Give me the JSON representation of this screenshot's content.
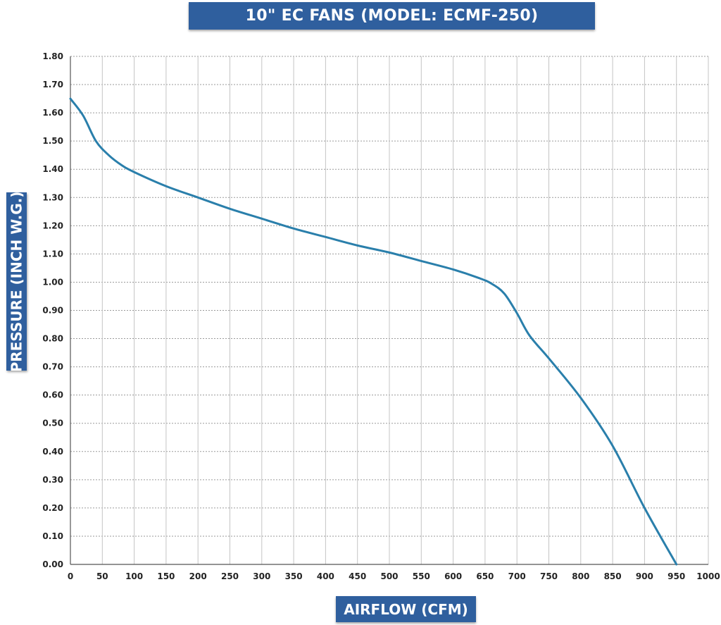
{
  "chart_data": {
    "type": "line",
    "title": "10\" EC FANS (MODEL: ECMF-250)",
    "xlabel": "AIRFLOW (CFM)",
    "ylabel": "PRESSURE (INCH W.G.)",
    "xlim": [
      0,
      1000
    ],
    "ylim": [
      0,
      1.8
    ],
    "x_ticks": [
      "0",
      "50",
      "100",
      "150",
      "200",
      "250",
      "300",
      "350",
      "400",
      "450",
      "500",
      "550",
      "600",
      "650",
      "700",
      "750",
      "800",
      "850",
      "900",
      "950",
      "1000"
    ],
    "y_ticks": [
      "0.00",
      "0.10",
      "0.20",
      "0.30",
      "0.40",
      "0.50",
      "0.60",
      "0.70",
      "0.80",
      "0.90",
      "1.00",
      "1.10",
      "1.20",
      "1.30",
      "1.40",
      "1.50",
      "1.60",
      "1.70",
      "1.80"
    ],
    "grid": true,
    "series": [
      {
        "color": "#2a7fab",
        "x": [
          0,
          20,
          40,
          60,
          80,
          100,
          150,
          200,
          250,
          300,
          350,
          400,
          450,
          500,
          550,
          600,
          640,
          660,
          680,
          700,
          720,
          750,
          800,
          850,
          900,
          950
        ],
        "y": [
          1.65,
          1.59,
          1.5,
          1.45,
          1.415,
          1.39,
          1.34,
          1.3,
          1.26,
          1.225,
          1.19,
          1.16,
          1.13,
          1.105,
          1.075,
          1.045,
          1.015,
          0.995,
          0.96,
          0.89,
          0.81,
          0.73,
          0.59,
          0.42,
          0.2,
          0.0
        ]
      }
    ]
  }
}
